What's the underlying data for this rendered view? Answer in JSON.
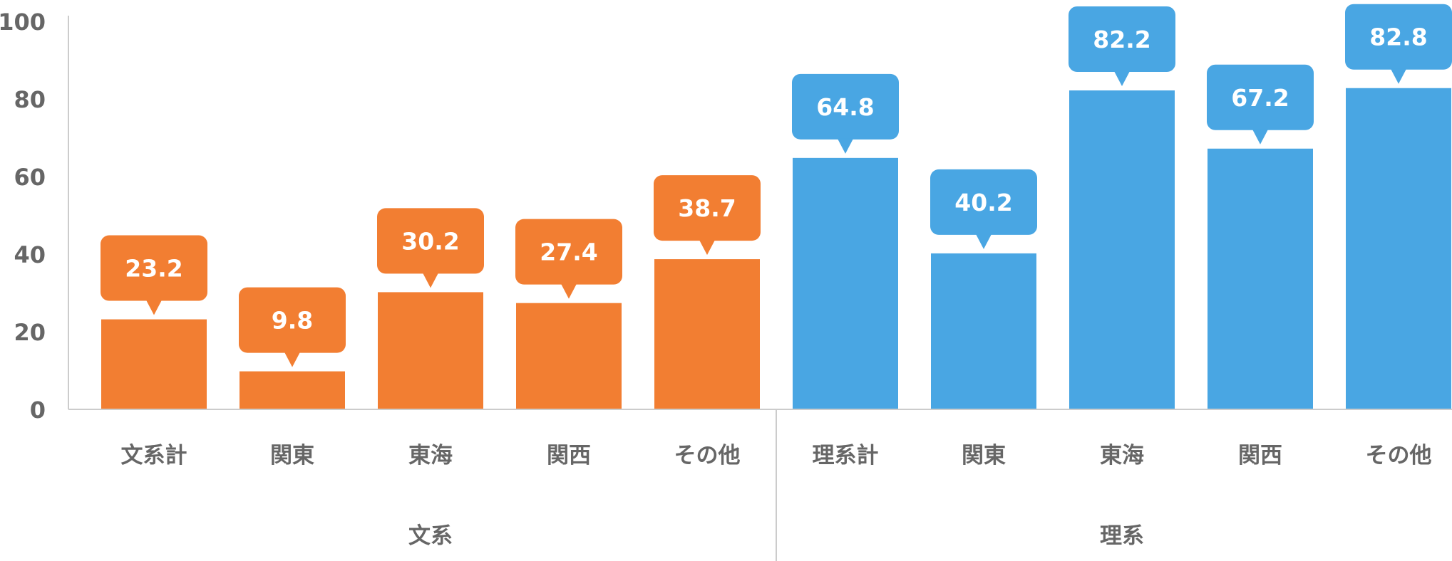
{
  "chart_data": {
    "type": "bar",
    "title": "",
    "xlabel": "",
    "ylabel": "",
    "ylim": [
      0,
      100
    ],
    "yticks": [
      0,
      20,
      40,
      60,
      80,
      100
    ],
    "grid": false,
    "legend": "none",
    "groups": [
      {
        "name": "文系",
        "color": "#F27E32",
        "categories": [
          "文系計",
          "関東",
          "東海",
          "関西",
          "その他"
        ],
        "values": [
          23.2,
          9.8,
          30.2,
          27.4,
          38.7
        ],
        "labels": [
          "23.2",
          "9.8",
          "30.2",
          "27.4",
          "38.7"
        ]
      },
      {
        "name": "理系",
        "color": "#49A6E3",
        "categories": [
          "理系計",
          "関東",
          "東海",
          "関西",
          "その他"
        ],
        "values": [
          64.8,
          40.2,
          82.2,
          67.2,
          82.8
        ],
        "labels": [
          "64.8",
          "40.2",
          "82.2",
          "67.2",
          "82.8"
        ]
      }
    ],
    "axis_color": "#CCCCCC",
    "text_color": "#666666"
  }
}
